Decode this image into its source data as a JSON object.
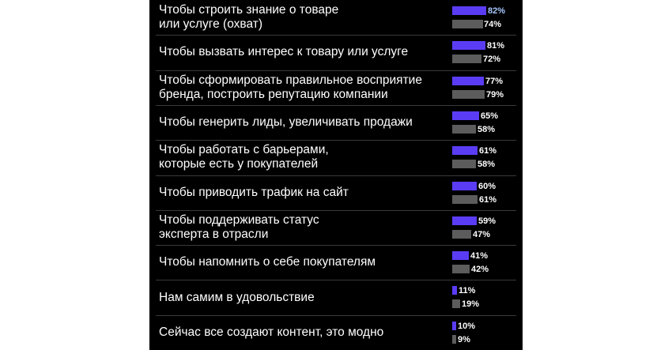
{
  "chart_data": {
    "type": "bar",
    "orientation": "horizontal",
    "value_suffix": "%",
    "colors": {
      "primary": "#5b3cf5",
      "secondary": "#5c5c5c",
      "background": "#000000",
      "highlight_label": "#a6c8ff"
    },
    "categories": [
      "Чтобы строить знание о товаре\nили услуге (охват)",
      "Чтобы вызвать интерес к товару или услуге",
      "Чтобы сформировать правильное восприятие\nбренда, построить репутацию компании",
      "Чтобы генерить лиды, увеличивать продажи",
      "Чтобы работать с барьерами,\nкоторые есть у покупателей",
      "Чтобы приводить трафик на сайт",
      "Чтобы поддерживать статус\nэксперта в отрасли",
      "Чтобы напомнить о себе покупателям",
      "Нам самим в удовольствие",
      "Сейчас все создают контент, это модно"
    ],
    "series": [
      {
        "values": [
          82,
          81,
          77,
          65,
          61,
          60,
          59,
          41,
          11,
          10
        ]
      },
      {
        "values": [
          74,
          72,
          79,
          58,
          58,
          61,
          47,
          42,
          19,
          9
        ]
      }
    ],
    "xlim": [
      0,
      100
    ]
  }
}
